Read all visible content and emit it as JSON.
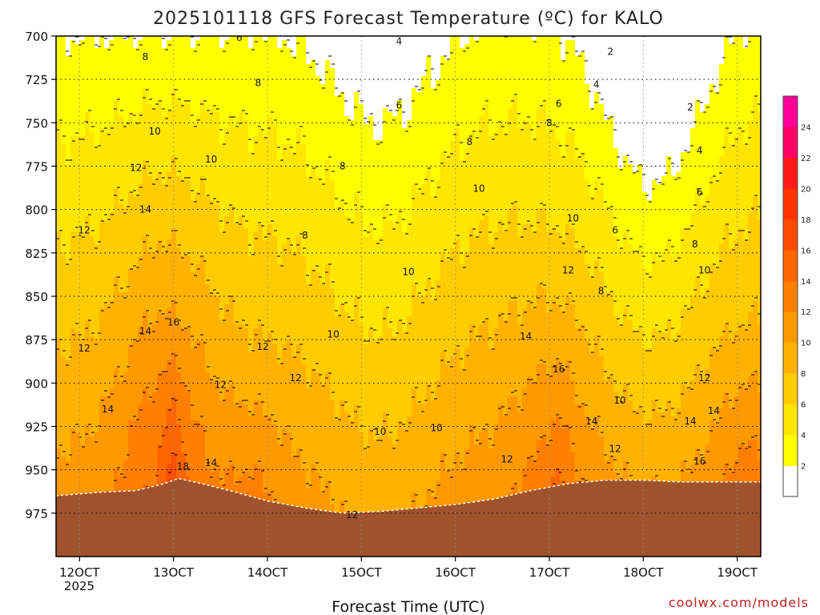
{
  "chart_data": {
    "type": "heatmap",
    "title": "2025101118 GFS Forecast Temperature (ºC) for KALO",
    "xlabel": "Forecast Time (UTC)",
    "credit": "coolwx.com/models",
    "x_ticks": [
      "12OCT",
      "13OCT",
      "14OCT",
      "15OCT",
      "16OCT",
      "17OCT",
      "18OCT",
      "19OCT"
    ],
    "x_year": "2025",
    "y_ticks": [
      "700",
      "725",
      "750",
      "775",
      "800",
      "825",
      "850",
      "875",
      "900",
      "925",
      "950",
      "975"
    ],
    "ylim": [
      700,
      1000
    ],
    "y_inverted": true,
    "grid": true,
    "colorbar": {
      "levels": [
        2,
        4,
        6,
        8,
        10,
        12,
        14,
        16,
        18,
        20,
        22,
        24
      ],
      "colors": [
        "#ffffff",
        "#ffff00",
        "#ffe600",
        "#ffcc00",
        "#ffb300",
        "#ff9900",
        "#ff8000",
        "#ff6600",
        "#ff4d00",
        "#ff3300",
        "#ff1a1a",
        "#ff0066",
        "#ff0099"
      ],
      "tick_labels": [
        "2",
        "4",
        "6",
        "8",
        "10",
        "12",
        "14",
        "16",
        "18",
        "20",
        "22",
        "24"
      ],
      "position": "right"
    },
    "terrain_color": "#a0522d",
    "contour_labels": [
      {
        "t": 12.05,
        "p": 812,
        "v": "12"
      },
      {
        "t": 12.05,
        "p": 880,
        "v": "12"
      },
      {
        "t": 12.3,
        "p": 915,
        "v": "14"
      },
      {
        "t": 12.6,
        "p": 776,
        "v": "12"
      },
      {
        "t": 12.8,
        "p": 755,
        "v": "10"
      },
      {
        "t": 12.7,
        "p": 712,
        "v": "8"
      },
      {
        "t": 12.7,
        "p": 800,
        "v": "14"
      },
      {
        "t": 12.7,
        "p": 870,
        "v": "14"
      },
      {
        "t": 13.0,
        "p": 865,
        "v": "16"
      },
      {
        "t": 13.1,
        "p": 948,
        "v": "18"
      },
      {
        "t": 13.4,
        "p": 946,
        "v": "14"
      },
      {
        "t": 13.5,
        "p": 901,
        "v": "12"
      },
      {
        "t": 13.4,
        "p": 771,
        "v": "10"
      },
      {
        "t": 13.7,
        "p": 701,
        "v": "6"
      },
      {
        "t": 13.9,
        "p": 727,
        "v": "8"
      },
      {
        "t": 13.95,
        "p": 879,
        "v": "12"
      },
      {
        "t": 14.3,
        "p": 897,
        "v": "12"
      },
      {
        "t": 14.4,
        "p": 815,
        "v": "8"
      },
      {
        "t": 14.7,
        "p": 872,
        "v": "10"
      },
      {
        "t": 14.8,
        "p": 775,
        "v": "8"
      },
      {
        "t": 14.9,
        "p": 976,
        "v": "12"
      },
      {
        "t": 15.2,
        "p": 928,
        "v": "10"
      },
      {
        "t": 15.4,
        "p": 703,
        "v": "4"
      },
      {
        "t": 15.4,
        "p": 740,
        "v": "6"
      },
      {
        "t": 15.5,
        "p": 836,
        "v": "10"
      },
      {
        "t": 15.8,
        "p": 926,
        "v": "10"
      },
      {
        "t": 16.15,
        "p": 761,
        "v": "8"
      },
      {
        "t": 16.25,
        "p": 788,
        "v": "10"
      },
      {
        "t": 16.55,
        "p": 944,
        "v": "12"
      },
      {
        "t": 16.75,
        "p": 873,
        "v": "14"
      },
      {
        "t": 17.0,
        "p": 750,
        "v": "8"
      },
      {
        "t": 17.1,
        "p": 739,
        "v": "6"
      },
      {
        "t": 17.1,
        "p": 892,
        "v": "16"
      },
      {
        "t": 17.2,
        "p": 835,
        "v": "12"
      },
      {
        "t": 17.25,
        "p": 805,
        "v": "10"
      },
      {
        "t": 17.45,
        "p": 922,
        "v": "14"
      },
      {
        "t": 17.5,
        "p": 728,
        "v": "4"
      },
      {
        "t": 17.55,
        "p": 847,
        "v": "8"
      },
      {
        "t": 17.65,
        "p": 709,
        "v": "2"
      },
      {
        "t": 17.7,
        "p": 812,
        "v": "6"
      },
      {
        "t": 17.7,
        "p": 938,
        "v": "12"
      },
      {
        "t": 17.75,
        "p": 910,
        "v": "10"
      },
      {
        "t": 18.5,
        "p": 741,
        "v": "2"
      },
      {
        "t": 18.6,
        "p": 766,
        "v": "4"
      },
      {
        "t": 18.6,
        "p": 790,
        "v": "6"
      },
      {
        "t": 18.55,
        "p": 820,
        "v": "8"
      },
      {
        "t": 18.5,
        "p": 922,
        "v": "14"
      },
      {
        "t": 18.6,
        "p": 945,
        "v": "16"
      },
      {
        "t": 18.65,
        "p": 835,
        "v": "10"
      },
      {
        "t": 18.65,
        "p": 897,
        "v": "12"
      },
      {
        "t": 18.75,
        "p": 916,
        "v": "14"
      }
    ]
  }
}
